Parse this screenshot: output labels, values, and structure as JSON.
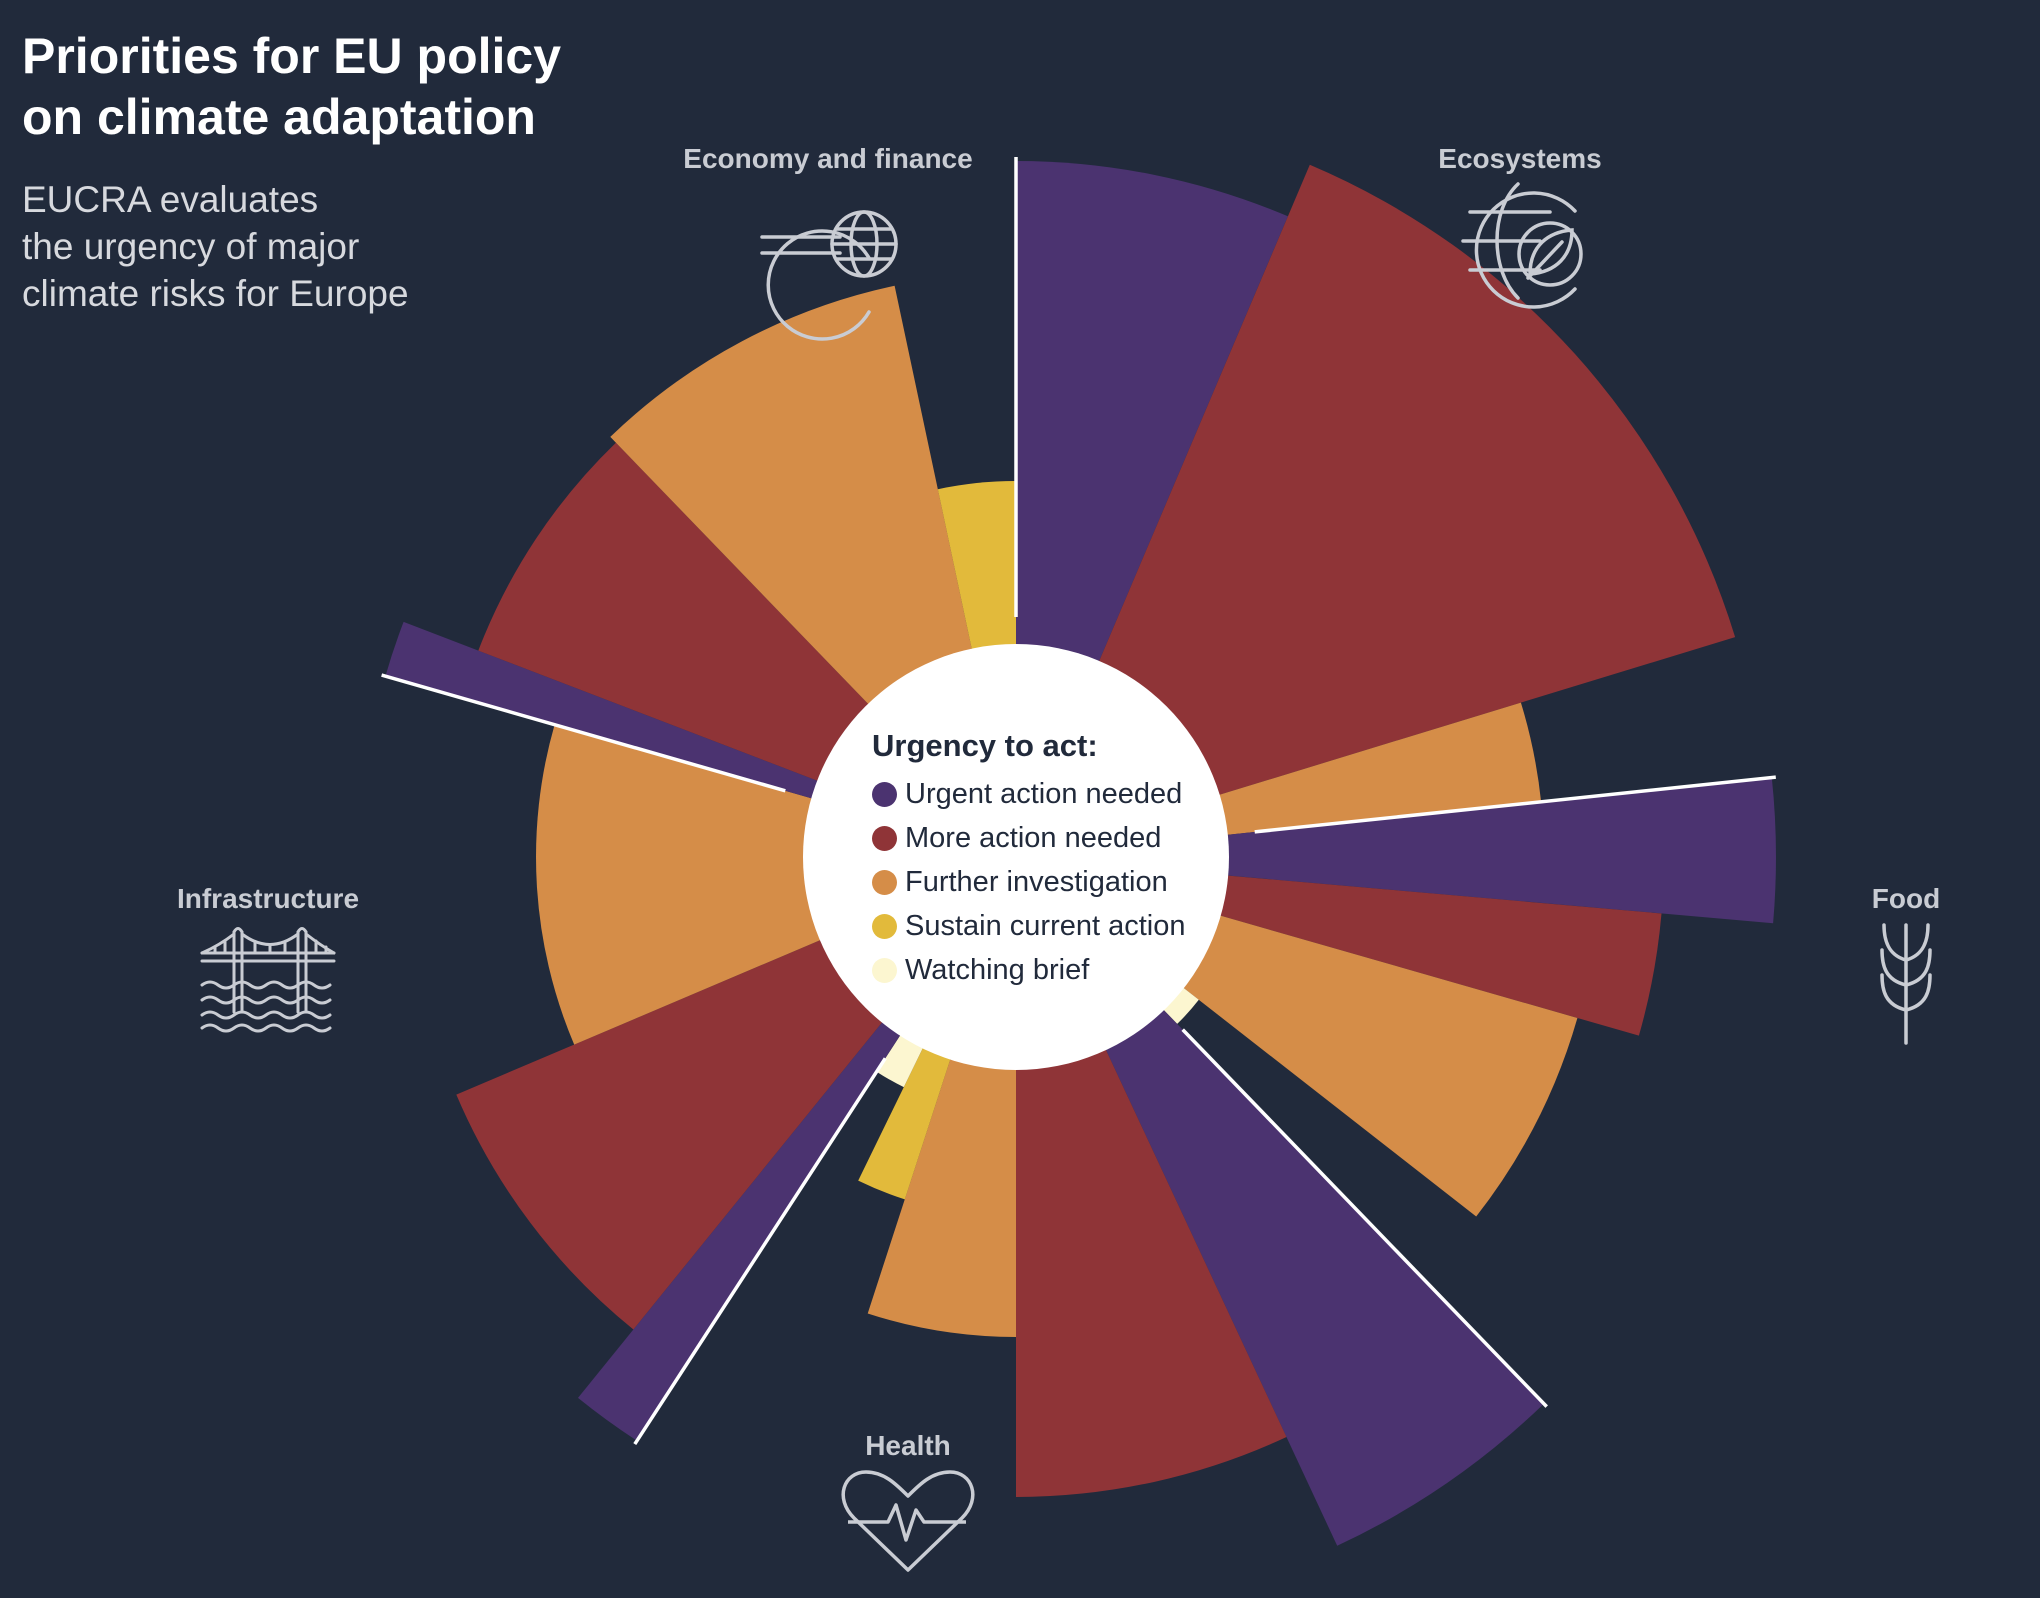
{
  "title_lines": [
    "Priorities for EU policy",
    "on climate adaptation"
  ],
  "subtitle_lines": [
    "EUCRA evaluates",
    "the urgency of major",
    "climate risks for Europe"
  ],
  "categories": {
    "economy": "Economy and finance",
    "ecosystems": "Ecosystems",
    "food": "Food",
    "health": "Health",
    "infrastructure": "Infrastructure"
  },
  "category_icons": {
    "economy": "euro-globe-icon",
    "ecosystems": "globe-leaf-icon",
    "food": "wheat-icon",
    "health": "heart-pulse-icon",
    "infrastructure": "bridge-water-icon"
  },
  "legend": {
    "title": "Urgency to act:",
    "items": [
      {
        "label": "Urgent action needed",
        "color": "#4b3370"
      },
      {
        "label": "More action needed",
        "color": "#8f3437"
      },
      {
        "label": "Further investigation",
        "color": "#d58d48"
      },
      {
        "label": "Sustain current action",
        "color": "#e2ba3b"
      },
      {
        "label": "Watching brief",
        "color": "#fcf6d0"
      }
    ]
  },
  "colors": {
    "background": "#212a3b",
    "center": "#ffffff",
    "separator": "#ffffff",
    "icon": "#c9ccd3"
  },
  "chart_data": {
    "type": "radial-bar",
    "sectors": [
      {
        "category": "Ecosystems",
        "start_deg": 0,
        "end_deg": 23,
        "value": 0.87,
        "urgency": "Urgent action needed"
      },
      {
        "category": "Ecosystems",
        "start_deg": 23,
        "end_deg": 73,
        "value": 0.94,
        "urgency": "More action needed"
      },
      {
        "category": "Ecosystems",
        "start_deg": 73,
        "end_deg": 84,
        "value": 0.66,
        "urgency": "Further investigation"
      },
      {
        "category": "Food",
        "start_deg": 84,
        "end_deg": 95,
        "value": 0.95,
        "urgency": "Urgent action needed"
      },
      {
        "category": "Food",
        "start_deg": 95,
        "end_deg": 106,
        "value": 0.81,
        "urgency": "More action needed"
      },
      {
        "category": "Food",
        "start_deg": 106,
        "end_deg": 128,
        "value": 0.73,
        "urgency": "Further investigation"
      },
      {
        "category": "Food",
        "start_deg": 128,
        "end_deg": 136,
        "value": 0.29,
        "urgency": "Watching brief"
      },
      {
        "category": "Health",
        "start_deg": 136,
        "end_deg": 155,
        "value": 0.95,
        "urgency": "Urgent action needed"
      },
      {
        "category": "Health",
        "start_deg": 155,
        "end_deg": 180,
        "value": 0.8,
        "urgency": "More action needed"
      },
      {
        "category": "Health",
        "start_deg": 180,
        "end_deg": 198,
        "value": 0.6,
        "urgency": "Further investigation"
      },
      {
        "category": "Health",
        "start_deg": 198,
        "end_deg": 206,
        "value": 0.45,
        "urgency": "Sustain current action"
      },
      {
        "category": "Health",
        "start_deg": 206,
        "end_deg": 213,
        "value": 0.32,
        "urgency": "Watching brief"
      },
      {
        "category": "Infrastructure",
        "start_deg": 213,
        "end_deg": 219,
        "value": 0.87,
        "urgency": "Urgent action needed"
      },
      {
        "category": "Infrastructure",
        "start_deg": 219,
        "end_deg": 247,
        "value": 0.76,
        "urgency": "More action needed"
      },
      {
        "category": "Infrastructure",
        "start_deg": 247,
        "end_deg": 286,
        "value": 0.6,
        "urgency": "Further investigation"
      },
      {
        "category": "Economy and finance",
        "start_deg": 286,
        "end_deg": 291,
        "value": 0.82,
        "urgency": "Urgent action needed"
      },
      {
        "category": "Economy and finance",
        "start_deg": 291,
        "end_deg": 316,
        "value": 0.72,
        "urgency": "More action needed"
      },
      {
        "category": "Economy and finance",
        "start_deg": 316,
        "end_deg": 348,
        "value": 0.73,
        "urgency": "Further investigation"
      },
      {
        "category": "Economy and finance",
        "start_deg": 348,
        "end_deg": 360,
        "value": 0.47,
        "urgency": "Sustain current action"
      }
    ],
    "separators_deg": [
      0,
      84,
      136,
      213,
      286
    ],
    "inner_radius_fraction": 0.3
  }
}
